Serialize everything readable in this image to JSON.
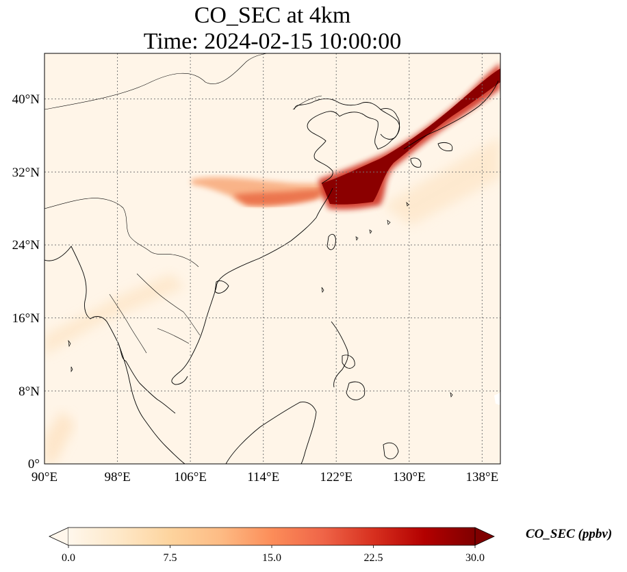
{
  "title": {
    "line1": "CO_SEC at 4km",
    "line2": "Time: 2024-02-15 10:00:00"
  },
  "map": {
    "projection": "PlateCarree",
    "lon_range": [
      90,
      140
    ],
    "lat_range": [
      0,
      45
    ],
    "gridlines": "dotted",
    "lon_ticks": [
      "90°E",
      "98°E",
      "106°E",
      "114°E",
      "122°E",
      "130°E",
      "138°E"
    ],
    "lat_ticks": [
      "0°",
      "8°N",
      "16°N",
      "24°N",
      "32°N",
      "40°N"
    ]
  },
  "colorbar": {
    "label": "CO_SEC (ppbv)",
    "colormap": "OrRd",
    "range": [
      0.0,
      30.0
    ],
    "extend": "both",
    "ticks": [
      "0.0",
      "7.5",
      "15.0",
      "22.5",
      "30.0"
    ],
    "colors": [
      "#fff7ec",
      "#fee8c8",
      "#fdd49e",
      "#fdbb84",
      "#fc8d59",
      "#ef6548",
      "#d7301f",
      "#b30000",
      "#7f0000"
    ]
  }
}
